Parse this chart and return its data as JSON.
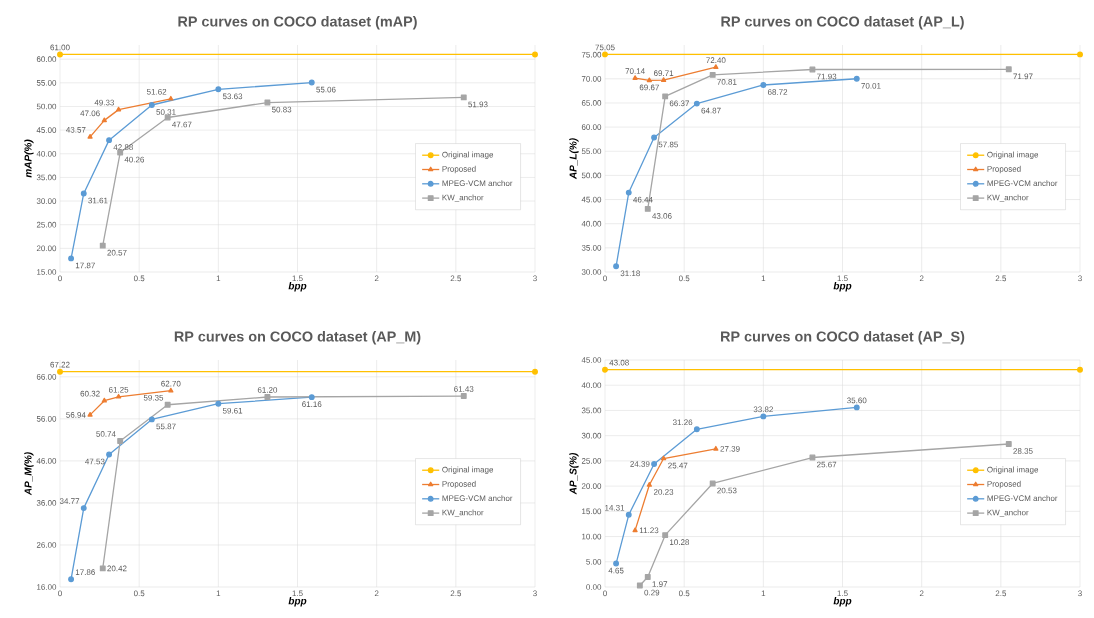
{
  "chart_data": [
    {
      "type": "line",
      "title": "RP curves on COCO dataset (mAP)",
      "xlabel": "bpp",
      "ylabel": "mAP(%)",
      "xlim": [
        0,
        3
      ],
      "ylim": [
        15,
        63
      ],
      "xticks": [
        0,
        0.5,
        1,
        1.5,
        2,
        2.5,
        3
      ],
      "yticks": [
        {
          "value": 15,
          "label": "15.00"
        },
        {
          "value": 20,
          "label": "20.00"
        },
        {
          "value": 25,
          "label": "25.00"
        },
        {
          "value": 30,
          "label": "30.00"
        },
        {
          "value": 35,
          "label": "35.00"
        },
        {
          "value": 40,
          "label": "40.00"
        },
        {
          "value": 45,
          "label": "45.00"
        },
        {
          "value": 50,
          "label": "50.00"
        },
        {
          "value": 55,
          "label": "55.00"
        },
        {
          "value": 60,
          "label": "60.00"
        }
      ],
      "grid": true,
      "legend": "right",
      "series": [
        {
          "name": "Original image",
          "color": "#ffc000",
          "marker": "circle",
          "x": [
            0,
            3
          ],
          "values": [
            61.0,
            61.0
          ],
          "value_labels": [
            "61.00",
            null
          ]
        },
        {
          "name": "Proposed",
          "color": "#ed7d31",
          "marker": "triangle",
          "x": [
            0.19,
            0.28,
            0.37,
            0.7
          ],
          "values": [
            43.57,
            47.06,
            49.33,
            51.62
          ],
          "value_labels": [
            "43.57",
            "47.06",
            "49.33",
            "51.62"
          ]
        },
        {
          "name": "MPEG-VCM anchor",
          "color": "#5b9bd5",
          "marker": "circle",
          "x": [
            0.07,
            0.15,
            0.31,
            0.58,
            1.0,
            1.59
          ],
          "values": [
            17.87,
            31.61,
            42.88,
            50.31,
            53.63,
            55.06
          ],
          "value_labels": [
            "17.87",
            "31.61",
            "42.88",
            "50.31",
            "53.63",
            "55.06"
          ]
        },
        {
          "name": "KW_anchor",
          "color": "#a5a5a5",
          "marker": "square",
          "x": [
            0.27,
            0.38,
            0.68,
            1.31,
            2.55
          ],
          "values": [
            20.57,
            40.26,
            47.67,
            50.83,
            51.93
          ],
          "value_labels": [
            "20.57",
            "40.26",
            "47.67",
            "50.83",
            "51.93"
          ]
        }
      ]
    },
    {
      "type": "line",
      "title": "RP curves on COCO dataset (AP_L)",
      "xlabel": "bpp",
      "ylabel": "AP_L(%)",
      "xlim": [
        0,
        3
      ],
      "ylim": [
        30,
        77
      ],
      "xticks": [
        0,
        0.5,
        1,
        1.5,
        2,
        2.5,
        3
      ],
      "yticks": [
        {
          "value": 30,
          "label": "30.00"
        },
        {
          "value": 35,
          "label": "35.00"
        },
        {
          "value": 40,
          "label": "40.00"
        },
        {
          "value": 45,
          "label": "45.00"
        },
        {
          "value": 50,
          "label": "50.00"
        },
        {
          "value": 55,
          "label": "55.00"
        },
        {
          "value": 60,
          "label": "60.00"
        },
        {
          "value": 65,
          "label": "65.00"
        },
        {
          "value": 70,
          "label": "70.00"
        },
        {
          "value": 75,
          "label": "75.00"
        }
      ],
      "grid": true,
      "legend": "right",
      "series": [
        {
          "name": "Original image",
          "color": "#ffc000",
          "marker": "circle",
          "x": [
            0,
            3
          ],
          "values": [
            75.05,
            75.05
          ],
          "value_labels": [
            "75.05",
            null
          ]
        },
        {
          "name": "Proposed",
          "color": "#ed7d31",
          "marker": "triangle",
          "x": [
            0.19,
            0.28,
            0.37,
            0.7
          ],
          "values": [
            70.14,
            69.67,
            69.71,
            72.4
          ],
          "value_labels": [
            "70.14",
            "69.67",
            "69.71",
            "72.40"
          ]
        },
        {
          "name": "MPEG-VCM anchor",
          "color": "#5b9bd5",
          "marker": "circle",
          "x": [
            0.07,
            0.15,
            0.31,
            0.58,
            1.0,
            1.59
          ],
          "values": [
            31.18,
            46.44,
            57.85,
            64.87,
            68.72,
            70.01
          ],
          "value_labels": [
            "31.18",
            "46.44",
            "57.85",
            "64.87",
            "68.72",
            "70.01"
          ]
        },
        {
          "name": "KW_anchor",
          "color": "#a5a5a5",
          "marker": "square",
          "x": [
            0.27,
            0.38,
            0.68,
            1.31,
            2.55
          ],
          "values": [
            43.06,
            66.37,
            70.81,
            71.93,
            71.97
          ],
          "value_labels": [
            "43.06",
            "66.37",
            "70.81",
            "71.93",
            "71.97"
          ]
        }
      ]
    },
    {
      "type": "line",
      "title": "RP curves on COCO dataset (AP_M)",
      "xlabel": "bpp",
      "ylabel": "AP_M(%)",
      "xlim": [
        0,
        3
      ],
      "ylim": [
        16,
        70
      ],
      "xticks": [
        0,
        0.5,
        1,
        1.5,
        2,
        2.5,
        3
      ],
      "yticks": [
        {
          "value": 16,
          "label": "16.00"
        },
        {
          "value": 26,
          "label": "26.00"
        },
        {
          "value": 36,
          "label": "36.00"
        },
        {
          "value": 46,
          "label": "46.00"
        },
        {
          "value": 56,
          "label": "56.00"
        },
        {
          "value": 66,
          "label": "66.00"
        }
      ],
      "grid": true,
      "legend": "right",
      "series": [
        {
          "name": "Original image",
          "color": "#ffc000",
          "marker": "circle",
          "x": [
            0,
            3
          ],
          "values": [
            67.22,
            67.22
          ],
          "value_labels": [
            "67.22",
            null
          ]
        },
        {
          "name": "Proposed",
          "color": "#ed7d31",
          "marker": "triangle",
          "x": [
            0.19,
            0.28,
            0.37,
            0.7
          ],
          "values": [
            56.94,
            60.32,
            61.25,
            62.7
          ],
          "value_labels": [
            "56.94",
            "60.32",
            "61.25",
            "62.70"
          ]
        },
        {
          "name": "MPEG-VCM anchor",
          "color": "#5b9bd5",
          "marker": "circle",
          "x": [
            0.07,
            0.15,
            0.31,
            0.58,
            1.0,
            1.59
          ],
          "values": [
            17.86,
            34.77,
            47.53,
            55.87,
            59.61,
            61.16
          ],
          "value_labels": [
            "17.86",
            "34.77",
            "47.53",
            "55.87",
            "59.61",
            "61.16"
          ]
        },
        {
          "name": "KW_anchor",
          "color": "#a5a5a5",
          "marker": "square",
          "x": [
            0.27,
            0.38,
            0.68,
            1.31,
            2.55
          ],
          "values": [
            20.42,
            50.74,
            59.35,
            61.2,
            61.43
          ],
          "value_labels": [
            "20.42",
            "50.74",
            "59.35",
            "61.20",
            "61.43"
          ]
        }
      ]
    },
    {
      "type": "line",
      "title": "RP curves on COCO dataset (AP_S)",
      "xlabel": "bpp",
      "ylabel": "AP_S(%)",
      "xlim": [
        0,
        3
      ],
      "ylim": [
        0,
        45
      ],
      "xticks": [
        0,
        0.5,
        1,
        1.5,
        2,
        2.5,
        3
      ],
      "yticks": [
        {
          "value": 0,
          "label": "0.00"
        },
        {
          "value": 5,
          "label": "5.00"
        },
        {
          "value": 10,
          "label": "10.00"
        },
        {
          "value": 15,
          "label": "15.00"
        },
        {
          "value": 20,
          "label": "20.00"
        },
        {
          "value": 25,
          "label": "25.00"
        },
        {
          "value": 30,
          "label": "30.00"
        },
        {
          "value": 35,
          "label": "35.00"
        },
        {
          "value": 40,
          "label": "40.00"
        },
        {
          "value": 45,
          "label": "45.00"
        }
      ],
      "grid": true,
      "legend": "right",
      "series": [
        {
          "name": "Original image",
          "color": "#ffc000",
          "marker": "circle",
          "x": [
            0,
            3
          ],
          "values": [
            43.08,
            43.08
          ],
          "value_labels": [
            "43.08",
            null
          ]
        },
        {
          "name": "Proposed",
          "color": "#ed7d31",
          "marker": "triangle",
          "x": [
            0.19,
            0.28,
            0.37,
            0.7
          ],
          "values": [
            11.23,
            20.23,
            25.47,
            27.39
          ],
          "value_labels": [
            "11.23",
            "20.23",
            "25.47",
            "27.39"
          ]
        },
        {
          "name": "MPEG-VCM anchor",
          "color": "#5b9bd5",
          "marker": "circle",
          "x": [
            0.07,
            0.15,
            0.31,
            0.58,
            1.0,
            1.59
          ],
          "values": [
            4.65,
            14.31,
            24.39,
            31.26,
            33.82,
            35.6
          ],
          "value_labels": [
            "4.65",
            "14.31",
            "24.39",
            "31.26",
            "33.82",
            "35.60"
          ]
        },
        {
          "name": "KW_anchor",
          "color": "#a5a5a5",
          "marker": "square",
          "x": [
            0.22,
            0.27,
            0.38,
            0.68,
            1.31,
            2.55
          ],
          "values": [
            0.29,
            1.97,
            10.28,
            20.53,
            25.67,
            28.35
          ],
          "value_labels": [
            "0.29",
            "1.97",
            "10.28",
            "20.53",
            "25.67",
            "28.35"
          ]
        }
      ]
    }
  ]
}
